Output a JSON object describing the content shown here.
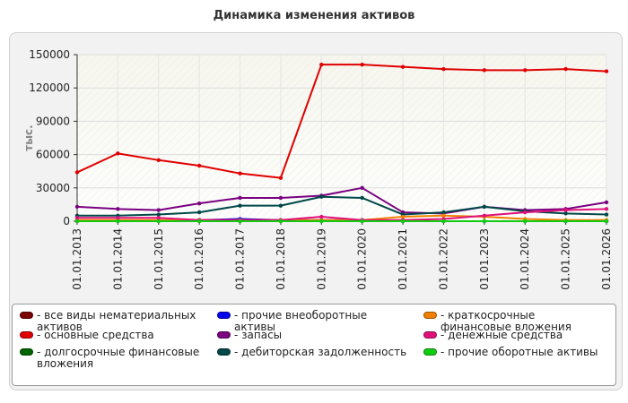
{
  "chart_data": {
    "type": "line",
    "title": "Динамика изменения активов",
    "ylabel": "тыс.",
    "xlabel": "",
    "ylim": [
      0,
      150000
    ],
    "yticks": [
      0,
      30000,
      60000,
      90000,
      120000,
      150000
    ],
    "grid": true,
    "legend_position": "bottom",
    "categories": [
      "01.01.2013",
      "01.01.2014",
      "01.01.2015",
      "01.01.2016",
      "01.01.2017",
      "01.01.2018",
      "01.01.2019",
      "01.01.2020",
      "01.01.2021",
      "01.01.2022",
      "01.01.2023",
      "01.01.2024",
      "01.01.2025",
      "01.01.2026"
    ],
    "series": [
      {
        "name": "- все виды нематериальных активов",
        "color": "#7a0000",
        "values": [
          0,
          0,
          0,
          0,
          0,
          0,
          0,
          0,
          0,
          0,
          0,
          0,
          0,
          0
        ]
      },
      {
        "name": "- основные средства",
        "color": "#e00000",
        "values": [
          44000,
          61000,
          55000,
          50000,
          43000,
          39000,
          141000,
          141000,
          139000,
          137000,
          136000,
          136000,
          137000,
          135000
        ]
      },
      {
        "name": "- долгосрочные финансовые вложения",
        "color": "#006400",
        "values": [
          0,
          0,
          0,
          0,
          0,
          0,
          0,
          0,
          0,
          0,
          0,
          0,
          0,
          0
        ]
      },
      {
        "name": "- прочие внеоборотные активы",
        "color": "#0000ee",
        "values": [
          500,
          500,
          500,
          1000,
          2000,
          1000,
          1000,
          1000,
          0,
          0,
          0,
          0,
          0,
          0
        ]
      },
      {
        "name": "- запасы",
        "color": "#7a0080",
        "values": [
          13000,
          11000,
          10000,
          16000,
          21000,
          21000,
          23000,
          30000,
          8000,
          7000,
          13000,
          10000,
          11000,
          17000
        ]
      },
      {
        "name": "- дебиторская задолженность",
        "color": "#004848",
        "values": [
          5000,
          5000,
          6000,
          8000,
          14000,
          14000,
          22000,
          21000,
          6000,
          8000,
          13000,
          9000,
          7000,
          6000
        ]
      },
      {
        "name": "- краткосрочные финансовые вложения",
        "color": "#f08000",
        "values": [
          1000,
          1000,
          1000,
          1000,
          1000,
          1000,
          1000,
          1000,
          4000,
          5000,
          4000,
          2000,
          1000,
          1000
        ]
      },
      {
        "name": "- денежные средства",
        "color": "#e0107a",
        "values": [
          3000,
          3000,
          3000,
          1000,
          1000,
          1000,
          4000,
          1000,
          1000,
          2000,
          5000,
          8000,
          10000,
          11000
        ]
      },
      {
        "name": "- прочие оборотные активы",
        "color": "#10cc10",
        "values": [
          0,
          0,
          0,
          0,
          0,
          0,
          0,
          0,
          0,
          0,
          0,
          0,
          0,
          0
        ]
      }
    ]
  }
}
